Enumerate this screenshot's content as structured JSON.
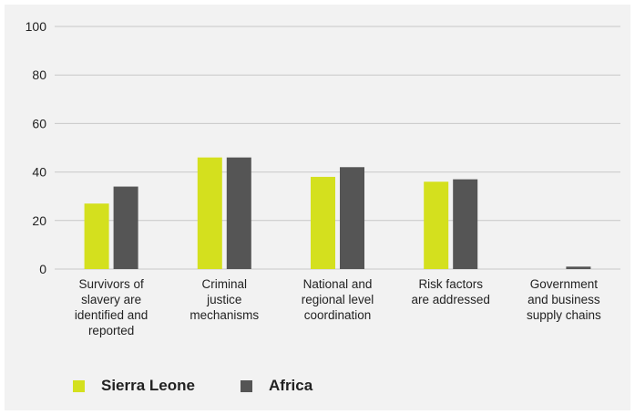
{
  "chart_data": {
    "type": "bar",
    "categories": [
      [
        "Survivors of",
        "slavery are",
        "identified and",
        "reported"
      ],
      [
        "Criminal",
        "justice",
        "mechanisms"
      ],
      [
        "National and",
        "regional level",
        "coordination"
      ],
      [
        "Risk factors",
        "are addressed"
      ],
      [
        "Government",
        "and business",
        "supply chains"
      ]
    ],
    "series": [
      {
        "name": "Sierra Leone",
        "color": "#d4e01e",
        "values": [
          27,
          46,
          38,
          36,
          0
        ]
      },
      {
        "name": "Africa",
        "color": "#555555",
        "values": [
          34,
          46,
          42,
          37,
          1
        ]
      }
    ],
    "ylim": [
      0,
      100
    ],
    "yticks": [
      0,
      20,
      40,
      60,
      80,
      100
    ],
    "grid": true,
    "legend": "bottom-left"
  },
  "legend": {
    "sierra_leone": "Sierra Leone",
    "africa": "Africa"
  }
}
